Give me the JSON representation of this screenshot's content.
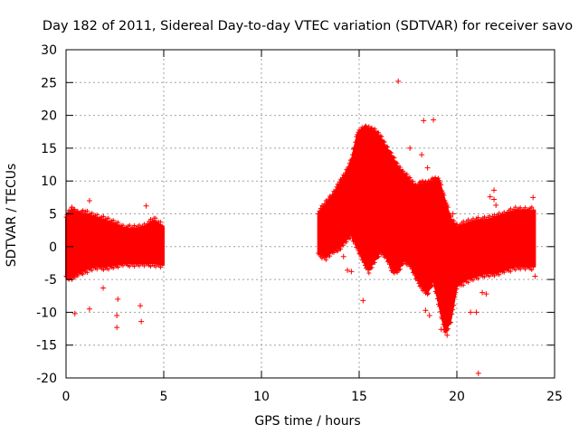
{
  "chart_data": {
    "type": "scatter",
    "title": "Day 182 of 2011, Sidereal Day-to-day VTEC variation (SDTVAR) for receiver savo",
    "xlabel": "GPS time / hours",
    "ylabel": "SDTVAR / TECUs",
    "xlim": [
      0,
      25
    ],
    "ylim": [
      -20,
      30
    ],
    "xticks": [
      0,
      5,
      10,
      15,
      20,
      25
    ],
    "yticks": [
      -20,
      -15,
      -10,
      -5,
      0,
      5,
      10,
      15,
      20,
      25,
      30
    ],
    "grid": true,
    "marker": "+",
    "color": "#ff0000",
    "series": [
      {
        "name": "SDTVAR",
        "band_segments": [
          {
            "x": [
              0.0,
              0.3,
              0.6,
              1.0,
              1.5,
              2.0,
              2.5,
              3.0,
              3.5,
              4.0,
              4.5,
              5.0
            ],
            "upper": [
              4.5,
              5.5,
              5.0,
              5.0,
              4.5,
              4.0,
              3.5,
              2.8,
              2.7,
              3.0,
              4.0,
              3.0
            ],
            "lower": [
              -4.5,
              -4.5,
              -4.0,
              -3.5,
              -3.0,
              -3.0,
              -2.8,
              -2.5,
              -2.5,
              -2.5,
              -2.5,
              -2.8
            ]
          },
          {
            "x": [
              12.9,
              13.3,
              13.7,
              14.0,
              14.3,
              14.6,
              14.9,
              15.2,
              15.5,
              15.8,
              16.1,
              16.4,
              16.7,
              17.0,
              17.3,
              17.6,
              17.9,
              18.2,
              18.5,
              18.8,
              19.1,
              19.4,
              19.7,
              20.0,
              20.5,
              21.0,
              21.5,
              22.0,
              22.5,
              23.0,
              23.5,
              24.0
            ],
            "upper": [
              5.0,
              6.5,
              8.0,
              9.5,
              11.0,
              13.0,
              17.0,
              18.0,
              17.8,
              17.5,
              16.5,
              15.0,
              13.5,
              12.0,
              11.0,
              10.0,
              9.0,
              9.5,
              9.5,
              10.0,
              10.0,
              7.0,
              4.0,
              3.0,
              3.5,
              4.0,
              4.0,
              4.5,
              5.0,
              5.5,
              5.5,
              5.5
            ],
            "lower": [
              -1.0,
              -1.5,
              -0.5,
              0.0,
              1.0,
              2.0,
              0.0,
              -2.0,
              -3.5,
              -2.0,
              -0.5,
              -1.5,
              -3.5,
              -3.5,
              -2.0,
              -2.5,
              -4.5,
              -6.0,
              -7.0,
              -5.0,
              -9.0,
              -13.0,
              -11.0,
              -6.0,
              -5.0,
              -4.5,
              -4.0,
              -4.0,
              -3.5,
              -3.0,
              -3.0,
              -3.0
            ]
          }
        ],
        "outliers": [
          {
            "x": 0.45,
            "y": -10.2
          },
          {
            "x": 1.2,
            "y": -9.5
          },
          {
            "x": 1.9,
            "y": -6.3
          },
          {
            "x": 2.6,
            "y": -12.3
          },
          {
            "x": 2.6,
            "y": -10.5
          },
          {
            "x": 2.65,
            "y": -8.0
          },
          {
            "x": 3.8,
            "y": -9.0
          },
          {
            "x": 3.85,
            "y": -11.4
          },
          {
            "x": 4.1,
            "y": 6.2
          },
          {
            "x": 1.2,
            "y": 7.0
          },
          {
            "x": 0.3,
            "y": 6.0
          },
          {
            "x": 14.2,
            "y": -1.5
          },
          {
            "x": 14.4,
            "y": -3.6
          },
          {
            "x": 14.6,
            "y": -3.8
          },
          {
            "x": 15.2,
            "y": -8.2
          },
          {
            "x": 17.0,
            "y": 25.2
          },
          {
            "x": 18.3,
            "y": 19.2
          },
          {
            "x": 18.8,
            "y": 19.3
          },
          {
            "x": 18.2,
            "y": 14.0
          },
          {
            "x": 18.5,
            "y": 12.0
          },
          {
            "x": 18.6,
            "y": -10.5
          },
          {
            "x": 18.4,
            "y": -9.7
          },
          {
            "x": 19.2,
            "y": -12.6
          },
          {
            "x": 19.5,
            "y": -13.5
          },
          {
            "x": 20.7,
            "y": -10.0
          },
          {
            "x": 21.0,
            "y": -10.0
          },
          {
            "x": 21.1,
            "y": -19.3
          },
          {
            "x": 21.3,
            "y": -7.0
          },
          {
            "x": 21.5,
            "y": -7.2
          },
          {
            "x": 21.7,
            "y": 7.6
          },
          {
            "x": 21.9,
            "y": 7.2
          },
          {
            "x": 21.9,
            "y": 8.6
          },
          {
            "x": 22.0,
            "y": 6.3
          },
          {
            "x": 23.9,
            "y": 7.5
          },
          {
            "x": 24.0,
            "y": -4.5
          },
          {
            "x": 17.6,
            "y": 15.0
          },
          {
            "x": 19.8,
            "y": 5.0
          }
        ]
      }
    ]
  }
}
